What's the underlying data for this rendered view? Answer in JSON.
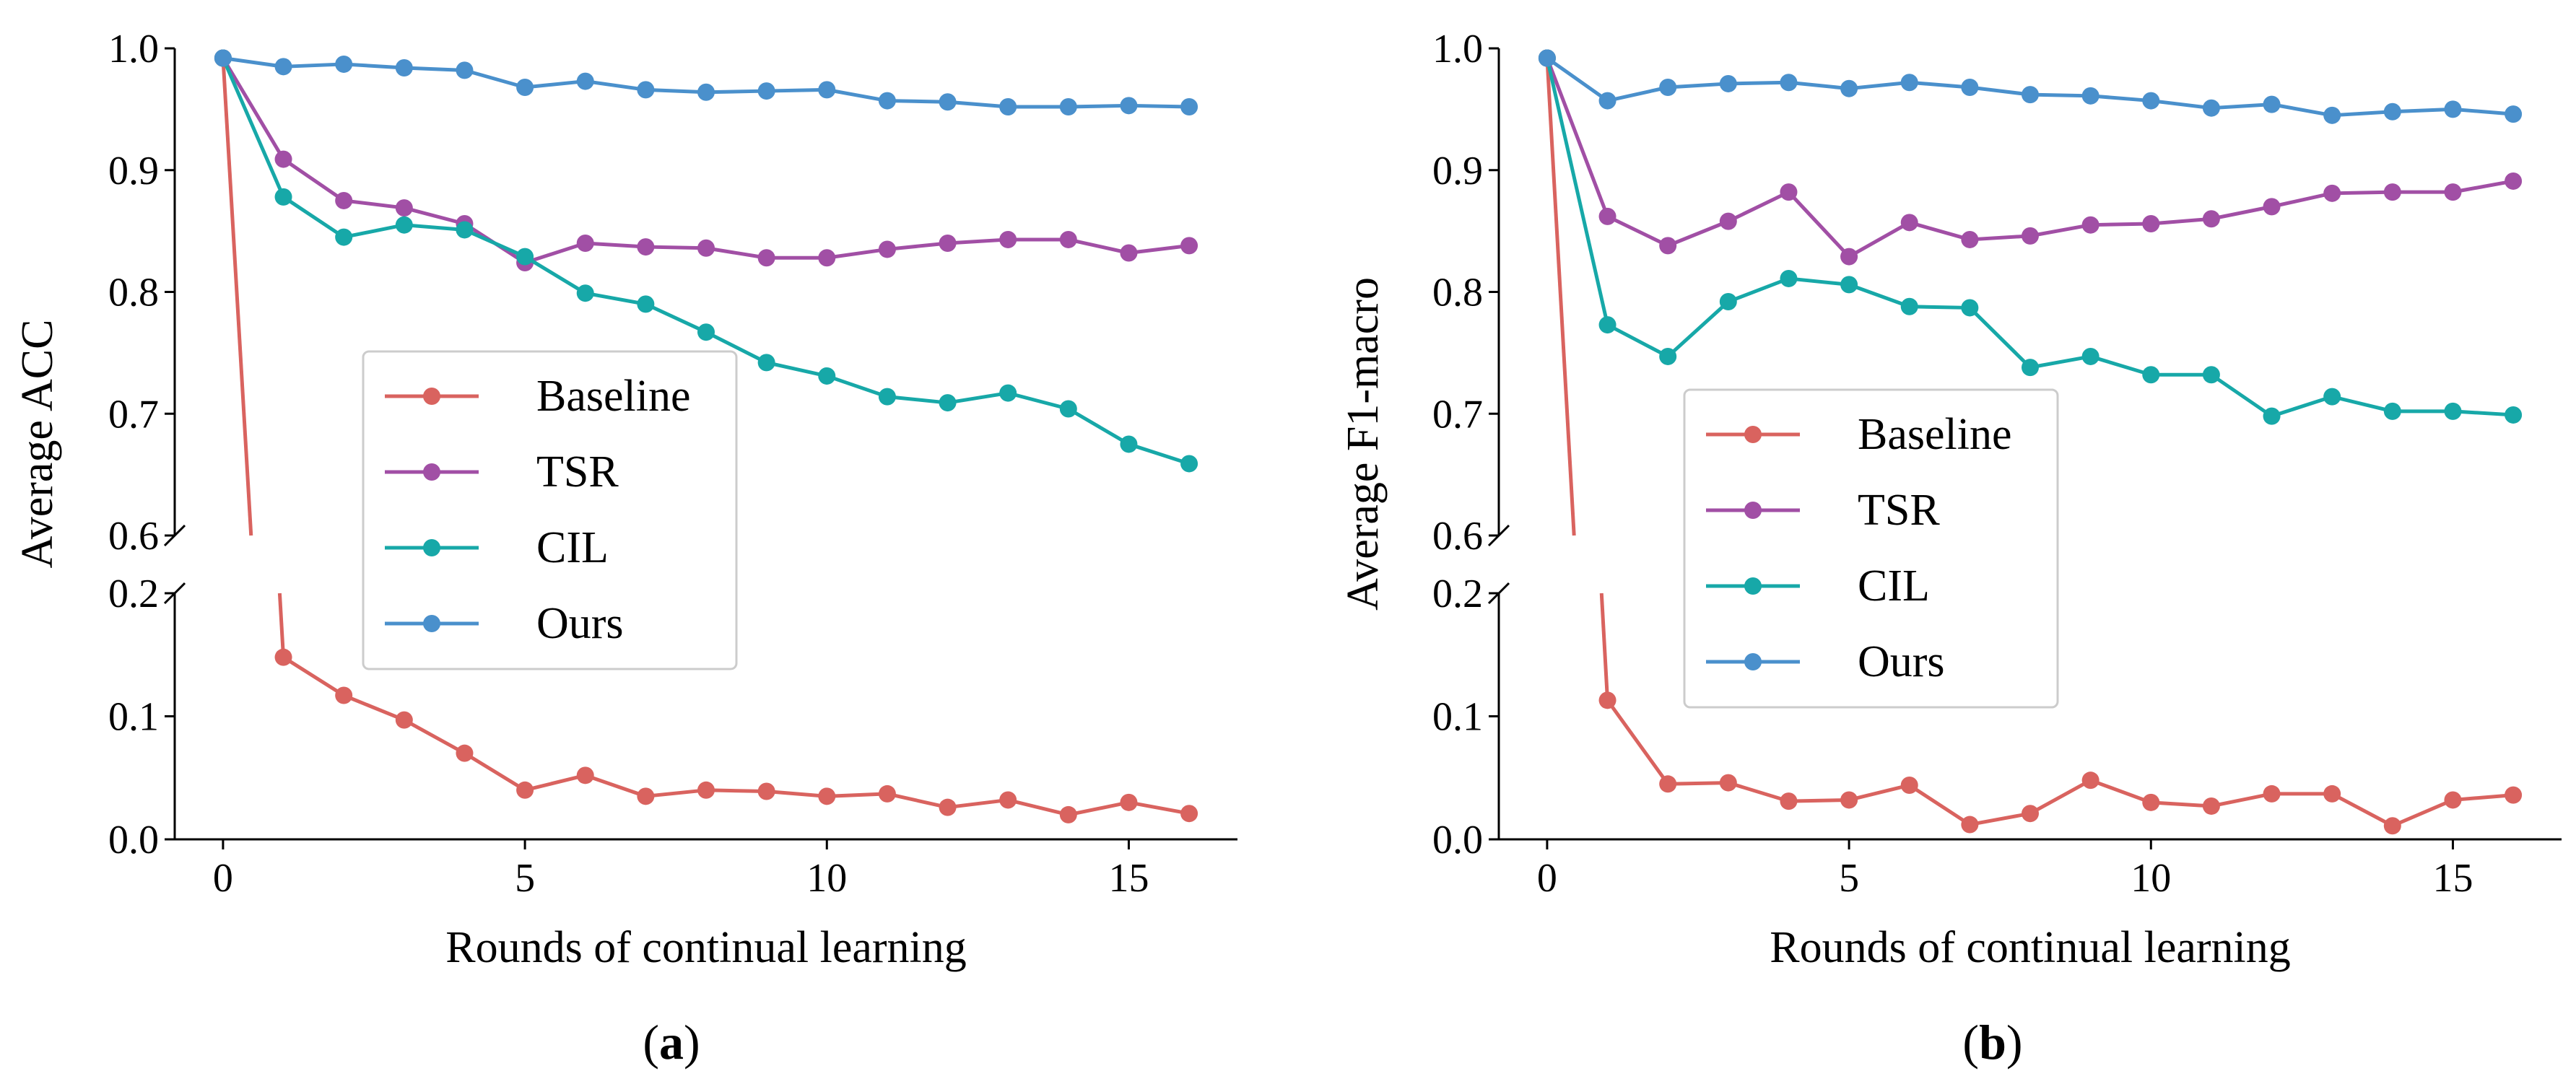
{
  "colors": {
    "Baseline": "#d9635f",
    "TSR": "#a14fa5",
    "CIL": "#17a8a8",
    "Ours": "#4a90cc",
    "axis": "#000000"
  },
  "chart_data": [
    {
      "type": "line",
      "panel_label": "(a)",
      "panel_letter": "a",
      "xlabel": "Rounds of continual learning",
      "ylabel": "Average ACC",
      "xlim": [
        -0.8,
        16.8
      ],
      "upper_ylim": [
        0.6,
        1.0
      ],
      "lower_ylim": [
        0.0,
        0.2
      ],
      "x_ticks": [
        "0",
        "5",
        "10",
        "15"
      ],
      "upper_y_ticks": [
        "0.6",
        "0.7",
        "0.8",
        "0.9",
        "1.0"
      ],
      "lower_y_ticks": [
        "0.0",
        "0.1",
        "0.2"
      ],
      "legend_position": "center",
      "x": [
        0,
        1,
        2,
        3,
        4,
        5,
        6,
        7,
        8,
        9,
        10,
        11,
        12,
        13,
        14,
        15,
        16
      ],
      "series": [
        {
          "name": "Baseline",
          "values": [
            0.992,
            0.148,
            0.117,
            0.097,
            0.07,
            0.04,
            0.052,
            0.035,
            0.04,
            0.039,
            0.035,
            0.037,
            0.026,
            0.032,
            0.02,
            0.03,
            0.021
          ]
        },
        {
          "name": "TSR",
          "values": [
            0.992,
            0.909,
            0.875,
            0.869,
            0.856,
            0.824,
            0.84,
            0.837,
            0.836,
            0.828,
            0.828,
            0.835,
            0.84,
            0.843,
            0.843,
            0.832,
            0.838
          ]
        },
        {
          "name": "CIL",
          "values": [
            0.992,
            0.878,
            0.845,
            0.855,
            0.851,
            0.829,
            0.799,
            0.79,
            0.767,
            0.742,
            0.731,
            0.714,
            0.709,
            0.717,
            0.704,
            0.675,
            0.659
          ]
        },
        {
          "name": "Ours",
          "values": [
            0.992,
            0.985,
            0.987,
            0.984,
            0.982,
            0.968,
            0.973,
            0.966,
            0.964,
            0.965,
            0.966,
            0.957,
            0.956,
            0.952,
            0.952,
            0.953,
            0.952
          ]
        }
      ]
    },
    {
      "type": "line",
      "panel_label": "(b)",
      "panel_letter": "b",
      "xlabel": "Rounds of continual learning",
      "ylabel": "Average F1-macro",
      "xlim": [
        -0.8,
        16.8
      ],
      "upper_ylim": [
        0.6,
        1.0
      ],
      "lower_ylim": [
        0.0,
        0.2
      ],
      "x_ticks": [
        "0",
        "5",
        "10",
        "15"
      ],
      "upper_y_ticks": [
        "0.6",
        "0.7",
        "0.8",
        "0.9",
        "1.0"
      ],
      "lower_y_ticks": [
        "0.0",
        "0.1",
        "0.2"
      ],
      "legend_position": "lower-left",
      "x": [
        0,
        1,
        2,
        3,
        4,
        5,
        6,
        7,
        8,
        9,
        10,
        11,
        12,
        13,
        14,
        15,
        16
      ],
      "series": [
        {
          "name": "Baseline",
          "values": [
            0.992,
            0.113,
            0.045,
            0.046,
            0.031,
            0.032,
            0.044,
            0.012,
            0.021,
            0.048,
            0.03,
            0.027,
            0.037,
            0.037,
            0.011,
            0.032,
            0.036
          ]
        },
        {
          "name": "TSR",
          "values": [
            0.992,
            0.862,
            0.838,
            0.858,
            0.882,
            0.829,
            0.857,
            0.843,
            0.846,
            0.855,
            0.856,
            0.86,
            0.87,
            0.881,
            0.882,
            0.882,
            0.891
          ]
        },
        {
          "name": "CIL",
          "values": [
            0.992,
            0.773,
            0.747,
            0.792,
            0.811,
            0.806,
            0.788,
            0.787,
            0.738,
            0.747,
            0.732,
            0.732,
            0.698,
            0.714,
            0.702,
            0.702,
            0.699
          ]
        },
        {
          "name": "Ours",
          "values": [
            0.992,
            0.957,
            0.968,
            0.971,
            0.972,
            0.967,
            0.972,
            0.968,
            0.962,
            0.961,
            0.957,
            0.951,
            0.954,
            0.945,
            0.948,
            0.95,
            0.946
          ]
        }
      ]
    }
  ]
}
